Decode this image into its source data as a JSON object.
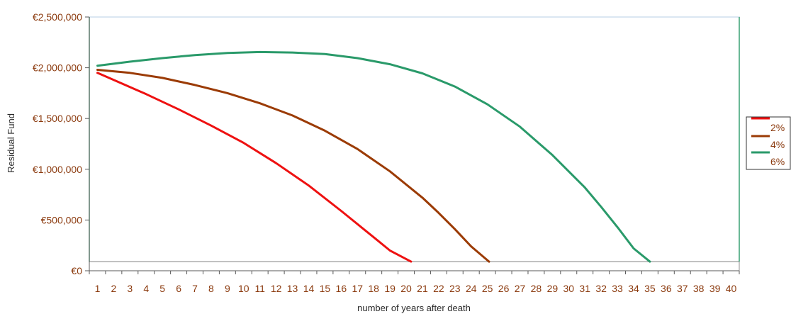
{
  "chart_data": {
    "type": "line",
    "title": "",
    "xlabel": "number of years after death",
    "ylabel": "Residual Fund",
    "categories": [
      "1",
      "2",
      "3",
      "4",
      "5",
      "6",
      "7",
      "8",
      "9",
      "10",
      "11",
      "12",
      "13",
      "14",
      "15",
      "16",
      "17",
      "18",
      "19",
      "20",
      "21",
      "22",
      "23",
      "24",
      "25",
      "26",
      "27",
      "28",
      "29",
      "30",
      "31",
      "32",
      "33",
      "34",
      "35",
      "36",
      "37",
      "38",
      "39",
      "40"
    ],
    "y_tick_labels": [
      "€0",
      "€500,000",
      "€1,000,000",
      "€1,500,000",
      "€2,000,000",
      "€2,500,000"
    ],
    "y_tick_values": [
      0,
      500000,
      1000000,
      1500000,
      2000000,
      2500000
    ],
    "ylim": [
      0,
      2500000
    ],
    "x_range": [
      0.5,
      40.5
    ],
    "grid": false,
    "legend_position": "right",
    "plot_floor_value": 90000,
    "series": [
      {
        "name": "2%",
        "color": "#ee1111",
        "x": [
          1,
          2,
          4,
          6,
          8,
          10,
          12,
          14,
          16,
          18,
          19,
          20.3
        ],
        "values": [
          1950000,
          1880000,
          1740000,
          1590000,
          1430000,
          1260000,
          1060000,
          840000,
          590000,
          330000,
          200000,
          90000
        ]
      },
      {
        "name": "4%",
        "color": "#9b3b05",
        "x": [
          1,
          3,
          5,
          7,
          9,
          11,
          13,
          15,
          17,
          19,
          21,
          22,
          23,
          24,
          25.1
        ],
        "values": [
          1980000,
          1950000,
          1900000,
          1830000,
          1750000,
          1650000,
          1530000,
          1380000,
          1200000,
          980000,
          720000,
          570000,
          410000,
          240000,
          90000
        ]
      },
      {
        "name": "6%",
        "color": "#2a9a6a",
        "x": [
          1,
          3,
          5,
          7,
          9,
          11,
          13,
          15,
          17,
          19,
          21,
          23,
          25,
          27,
          29,
          31,
          32,
          33,
          34,
          35
        ],
        "values": [
          2020000,
          2060000,
          2095000,
          2125000,
          2145000,
          2155000,
          2150000,
          2135000,
          2095000,
          2035000,
          1945000,
          1815000,
          1640000,
          1420000,
          1140000,
          820000,
          630000,
          430000,
          220000,
          90000
        ]
      }
    ]
  }
}
